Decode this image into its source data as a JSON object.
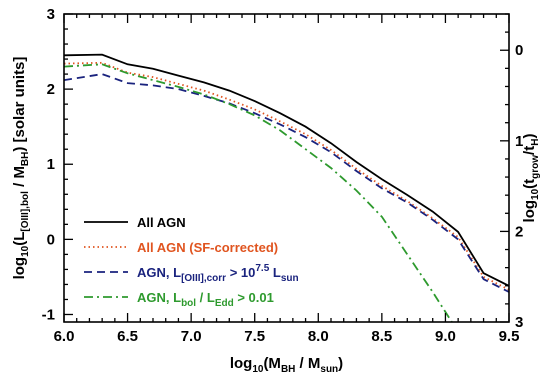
{
  "chart_data": {
    "type": "line",
    "xlabel": {
      "main": "log",
      "sub1": "10",
      "open": "(M",
      "sub2": "BH",
      "mid": " / M",
      "sub3": "sun",
      "close": ")"
    },
    "ylabel": {
      "main": "log",
      "sub1": "10",
      "open": "(L",
      "sub2": "[OIII],bol",
      "mid": " / M",
      "sub3": "BH",
      "close": ")",
      "units": "[solar units]"
    },
    "y2label": {
      "main": "log",
      "sub1": "10",
      "open": "(t",
      "sub2": "grow",
      "mid": "/t",
      "sub3": "H",
      "close": ")"
    },
    "xlim": [
      6.0,
      9.5
    ],
    "ylim": [
      -1.1,
      3.0
    ],
    "y2lim": [
      -0.4,
      3.0
    ],
    "x_ticks": [
      "6.0",
      "6.5",
      "7.0",
      "7.5",
      "8.0",
      "8.5",
      "9.0",
      "9.5"
    ],
    "y_ticks": [
      "-1",
      "0",
      "1",
      "2",
      "3"
    ],
    "y2_ticks": [
      "0",
      "1",
      "2",
      "3"
    ],
    "grid": false,
    "legend_position": "lower-left",
    "series": [
      {
        "name": "All AGN",
        "color": "#000000",
        "dash": "solid",
        "x": [
          6.0,
          6.3,
          6.5,
          6.7,
          6.9,
          7.1,
          7.3,
          7.5,
          7.7,
          7.9,
          8.1,
          8.3,
          8.5,
          8.7,
          8.9,
          9.1,
          9.3,
          9.5
        ],
        "y": [
          2.45,
          2.46,
          2.33,
          2.27,
          2.18,
          2.09,
          1.98,
          1.84,
          1.68,
          1.5,
          1.28,
          1.03,
          0.8,
          0.59,
          0.37,
          0.1,
          -0.45,
          -0.62
        ]
      },
      {
        "name": "All AGN (SF-corrected)",
        "color": "#e0541f",
        "dash": "dotted",
        "x": [
          6.0,
          6.3,
          6.5,
          6.7,
          6.9,
          7.1,
          7.3,
          7.5,
          7.7,
          7.9,
          8.1,
          8.3,
          8.5,
          8.7,
          8.9,
          9.1,
          9.3,
          9.5
        ],
        "y": [
          2.34,
          2.35,
          2.22,
          2.16,
          2.07,
          1.98,
          1.86,
          1.73,
          1.57,
          1.4,
          1.19,
          0.94,
          0.71,
          0.51,
          0.28,
          0.03,
          -0.5,
          -0.67
        ]
      },
      {
        "name": "AGN, L[OIII],corr > 10^7.5 Lsun",
        "label": {
          "a": "AGN, L",
          "s1": "[OIII],corr",
          "b": " > 10",
          "s2": "7.5",
          "c": " L",
          "s3": "sun"
        },
        "color": "#1a237e",
        "dash": "dashed",
        "x": [
          6.0,
          6.3,
          6.5,
          6.7,
          6.9,
          7.1,
          7.3,
          7.5,
          7.7,
          7.9,
          8.1,
          8.3,
          8.5,
          8.7,
          8.9,
          9.1,
          9.3,
          9.5
        ],
        "y": [
          2.12,
          2.2,
          2.08,
          2.05,
          2.0,
          1.91,
          1.81,
          1.68,
          1.53,
          1.36,
          1.16,
          0.91,
          0.68,
          0.49,
          0.26,
          0.0,
          -0.53,
          -0.7
        ]
      },
      {
        "name": "AGN, Lbol / LEdd > 0.01",
        "label": {
          "a": "AGN, L",
          "s1": "bol",
          "b": " / L",
          "s2": "Edd",
          "c": " > 0.01"
        },
        "color": "#2e9a2e",
        "dash": "dashdot",
        "x": [
          6.0,
          6.3,
          6.5,
          6.7,
          6.9,
          7.1,
          7.3,
          7.5,
          7.7,
          7.9,
          8.1,
          8.3,
          8.5,
          8.7,
          8.9,
          9.05
        ],
        "y": [
          2.3,
          2.33,
          2.21,
          2.12,
          2.03,
          1.93,
          1.8,
          1.65,
          1.45,
          1.2,
          0.95,
          0.65,
          0.3,
          -0.2,
          -0.7,
          -1.1
        ]
      }
    ]
  }
}
